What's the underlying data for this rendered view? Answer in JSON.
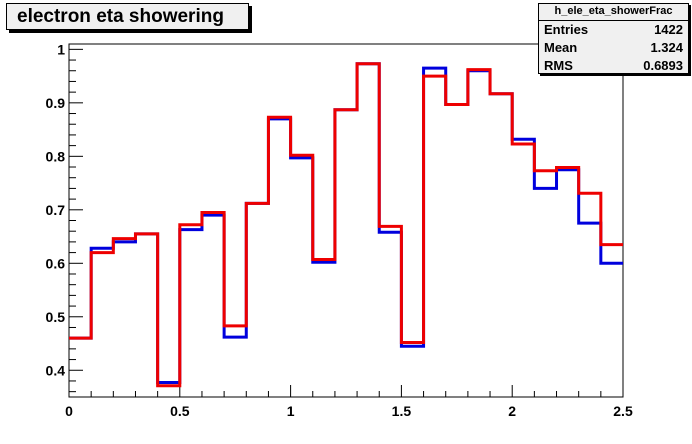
{
  "title": "electron eta showering",
  "stats": {
    "name": "h_ele_eta_showerFrac",
    "entries_label": "Entries",
    "entries_value": "1422",
    "mean_label": "Mean",
    "mean_value": "1.324",
    "rms_label": "RMS",
    "rms_value": "0.6893"
  },
  "chart_data": {
    "type": "histogram",
    "title": "electron eta showering",
    "xlim": [
      0,
      2.5
    ],
    "ylim": [
      0.35,
      1.01
    ],
    "x_ticks": [
      0,
      0.5,
      1,
      1.5,
      2,
      2.5
    ],
    "x_tick_labels": [
      "0",
      "0.5",
      "1",
      "1.5",
      "2",
      "2.5"
    ],
    "y_ticks": [
      0.4,
      0.5,
      0.6,
      0.7,
      0.8,
      0.9,
      1
    ],
    "y_tick_labels": [
      "0.4",
      "0.5",
      "0.6",
      "0.7",
      "0.8",
      "0.9",
      "1"
    ],
    "bin_edges": [
      0,
      0.1,
      0.2,
      0.3,
      0.4,
      0.5,
      0.6,
      0.7,
      0.8,
      0.9,
      1.0,
      1.1,
      1.2,
      1.3,
      1.4,
      1.5,
      1.6,
      1.7,
      1.8,
      1.9,
      2.0,
      2.1,
      2.2,
      2.3,
      2.4,
      2.5
    ],
    "series": [
      {
        "color": "#0000dd",
        "values": [
          0.46,
          0.628,
          0.64,
          0.655,
          0.377,
          0.663,
          0.69,
          0.462,
          0.712,
          0.87,
          0.797,
          0.602,
          0.887,
          0.973,
          0.658,
          0.445,
          0.965,
          0.897,
          0.96,
          0.917,
          0.832,
          0.74,
          0.775,
          0.675,
          0.6
        ]
      },
      {
        "color": "#ee0000",
        "values": [
          0.46,
          0.62,
          0.646,
          0.655,
          0.371,
          0.672,
          0.695,
          0.483,
          0.712,
          0.873,
          0.802,
          0.607,
          0.887,
          0.973,
          0.669,
          0.452,
          0.95,
          0.897,
          0.962,
          0.917,
          0.823,
          0.773,
          0.779,
          0.731,
          0.635
        ]
      }
    ]
  }
}
